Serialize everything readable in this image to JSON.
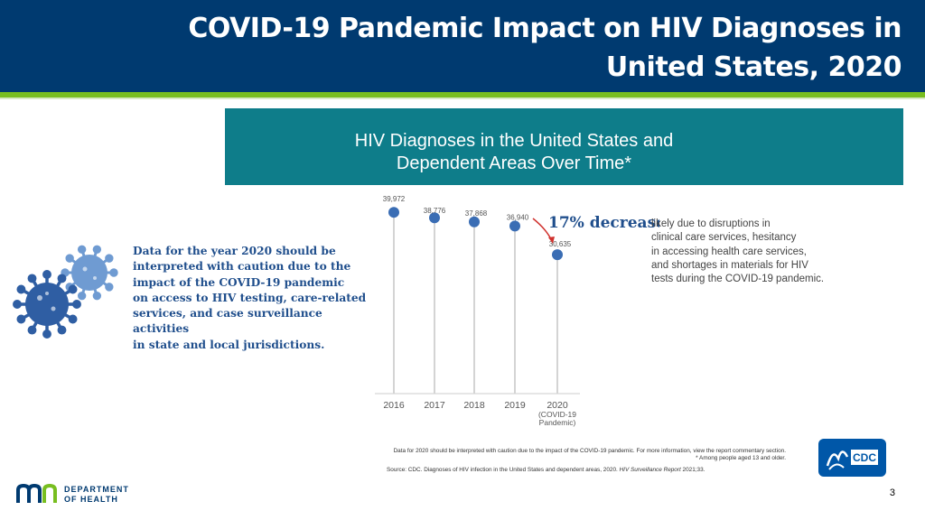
{
  "slide": {
    "title": "COVID-19 Pandemic Impact on HIV Diagnoses in United States, 2020",
    "page_number": "3"
  },
  "banner": {
    "title_line1": "HIV Diagnoses in the United States and",
    "title_line2": "Dependent Areas Over Time*"
  },
  "caution_note": {
    "lines": [
      "Data for the year 2020 should be",
      "interpreted with caution due to the",
      "impact of the COVID-19 pandemic",
      "on access to HIV testing, care-related",
      "services, and case surveillance activities",
      "in state and local jurisdictions."
    ]
  },
  "chart_data": {
    "type": "scatter",
    "categories": [
      "2016",
      "2017",
      "2018",
      "2019",
      "2020"
    ],
    "category_sublabels": [
      "",
      "",
      "",
      "",
      "(COVID-19\nPandemic)"
    ],
    "values": [
      39972,
      38776,
      37868,
      36940,
      30635
    ],
    "value_labels": [
      "39,972",
      "38,776",
      "37,868",
      "36,940",
      "30,635"
    ],
    "ylim": [
      0,
      42000
    ],
    "grid": false,
    "annotation": {
      "highlight": "17% decrease",
      "lines": [
        "likely due to disruptions in",
        "clinical care services, hesitancy",
        "in accessing health care services,",
        "and shortages in materials for HIV",
        "tests during the COVID-19 pandemic."
      ]
    },
    "colors": {
      "marker": "#3a6db4",
      "stem": "#d4d4d4",
      "arrow": "#d0312d",
      "highlight": "#1f4e8c"
    }
  },
  "footnotes": {
    "line1": "Data for 2020 should be interpreted with caution due to the impact of the COVID-19 pandemic. For more information, view the report commentary section.",
    "line2": "* Among people aged 13 and older.",
    "source_prefix": "Source: CDC. Diagnoses of HIV infection in the United States and dependent areas, 2020. ",
    "source_italic": "HIV Surveillance Report",
    "source_suffix": " 2021;33."
  },
  "cdc_logo": {
    "text": "CDC"
  },
  "mn_logo": {
    "line1": "DEPARTMENT",
    "line2": "OF HEALTH"
  },
  "colors": {
    "header": "#003a70",
    "accent": "#78be20",
    "banner": "#0e7d8a"
  }
}
